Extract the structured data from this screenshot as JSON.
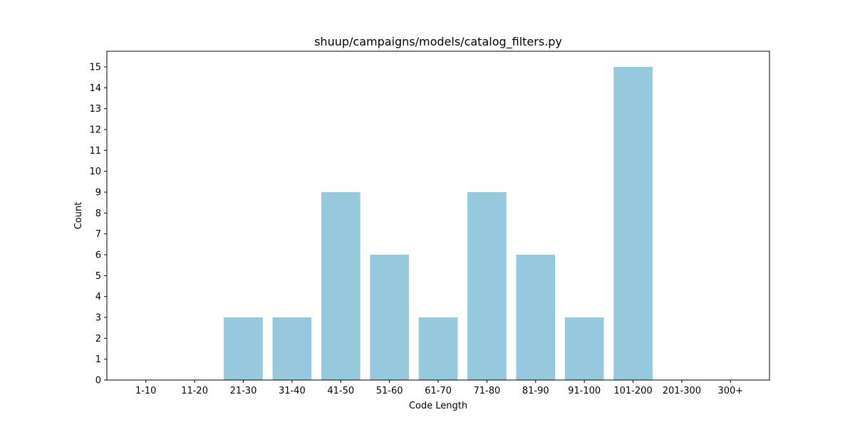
{
  "chart_data": {
    "type": "bar",
    "title": "shuup/campaigns/models/catalog_filters.py",
    "xlabel": "Code Length",
    "ylabel": "Count",
    "categories": [
      "1-10",
      "11-20",
      "21-30",
      "31-40",
      "41-50",
      "51-60",
      "61-70",
      "71-80",
      "81-90",
      "91-100",
      "101-200",
      "201-300",
      "300+"
    ],
    "values": [
      0,
      0,
      3,
      3,
      9,
      6,
      3,
      9,
      6,
      3,
      15,
      0,
      0
    ],
    "yticks": [
      0,
      1,
      2,
      3,
      4,
      5,
      6,
      7,
      8,
      9,
      10,
      11,
      12,
      13,
      14,
      15
    ],
    "ylim": [
      0,
      15.75
    ],
    "bar_color": "#96c9dd",
    "grid": false,
    "legend": "none"
  }
}
